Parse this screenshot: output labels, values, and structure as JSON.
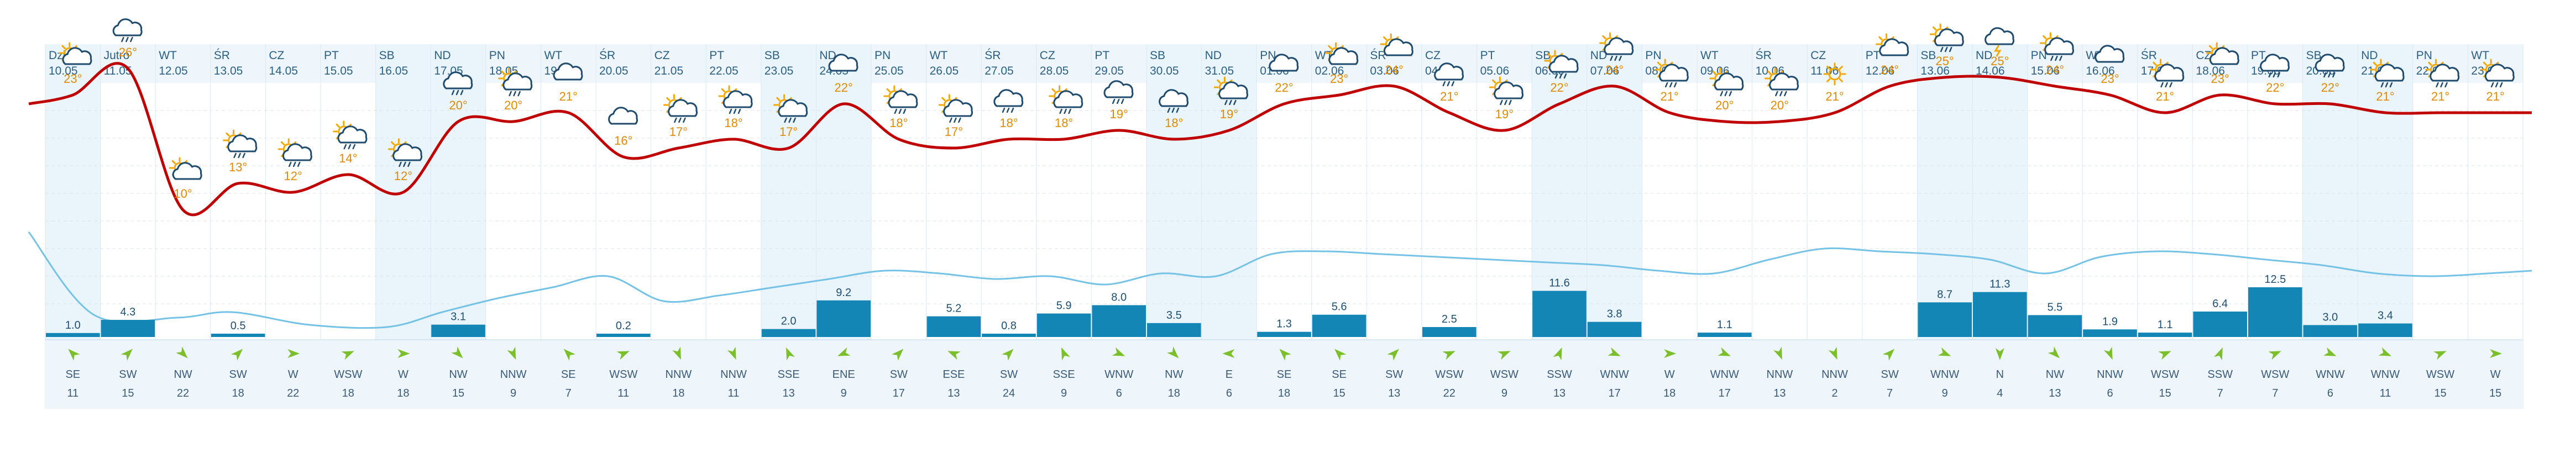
{
  "colors": {
    "background": "#ffffff",
    "weekend_shade": "#e9f4fb",
    "date_header": "#eef6fb",
    "wind_row": "#eef6fb",
    "temp_line": "#c00000",
    "humidity_line": "#74c3e6",
    "rain_bar": "#1386b5",
    "sun": "#f2a800",
    "cloud": "#1f4b6e",
    "wind_arrow": "#7bbf2a",
    "temp_text": "#e08a00"
  },
  "days": [
    {
      "day": "Dzisiaj",
      "date": "10.05",
      "temp": "23°",
      "icon": "sun-cloud-icon",
      "rain": "1.0",
      "wind_dir": "SE",
      "wind_speed": "11",
      "weekend": true
    },
    {
      "day": "Jutro",
      "date": "11.05",
      "temp": "26°",
      "icon": "rain-cloud-icon",
      "rain": "4.3",
      "wind_dir": "SW",
      "wind_speed": "15",
      "weekend": false
    },
    {
      "day": "WT",
      "date": "12.05",
      "temp": "10°",
      "icon": "sun-cloud-icon",
      "rain": "",
      "wind_dir": "NW",
      "wind_speed": "22",
      "weekend": false
    },
    {
      "day": "ŚR",
      "date": "13.05",
      "temp": "13°",
      "icon": "sun-rain-icon",
      "rain": "0.5",
      "wind_dir": "SW",
      "wind_speed": "18",
      "weekend": false
    },
    {
      "day": "CZ",
      "date": "14.05",
      "temp": "12°",
      "icon": "sun-rain-icon",
      "rain": "",
      "wind_dir": "W",
      "wind_speed": "22",
      "weekend": false
    },
    {
      "day": "PT",
      "date": "15.05",
      "temp": "14°",
      "icon": "sun-rain-icon",
      "rain": "",
      "wind_dir": "WSW",
      "wind_speed": "18",
      "weekend": false
    },
    {
      "day": "SB",
      "date": "16.05",
      "temp": "12°",
      "icon": "sun-rain-icon",
      "rain": "",
      "wind_dir": "W",
      "wind_speed": "18",
      "weekend": true
    },
    {
      "day": "ND",
      "date": "17.05",
      "temp": "20°",
      "icon": "rain-cloud-icon",
      "rain": "3.1",
      "wind_dir": "NW",
      "wind_speed": "15",
      "weekend": true
    },
    {
      "day": "PN",
      "date": "18.05",
      "temp": "20°",
      "icon": "sun-rain-icon",
      "rain": "",
      "wind_dir": "NNW",
      "wind_speed": "9",
      "weekend": false
    },
    {
      "day": "WT",
      "date": "19.05",
      "temp": "21°",
      "icon": "cloud-icon",
      "rain": "",
      "wind_dir": "SE",
      "wind_speed": "7",
      "weekend": false
    },
    {
      "day": "ŚR",
      "date": "20.05",
      "temp": "16°",
      "icon": "cloud-icon",
      "rain": "0.2",
      "wind_dir": "WSW",
      "wind_speed": "11",
      "weekend": false
    },
    {
      "day": "CZ",
      "date": "21.05",
      "temp": "17°",
      "icon": "sun-rain-icon",
      "rain": "",
      "wind_dir": "NNW",
      "wind_speed": "18",
      "weekend": false
    },
    {
      "day": "PT",
      "date": "22.05",
      "temp": "18°",
      "icon": "sun-rain-icon",
      "rain": "",
      "wind_dir": "NNW",
      "wind_speed": "11",
      "weekend": false
    },
    {
      "day": "SB",
      "date": "23.05",
      "temp": "17°",
      "icon": "sun-rain-icon",
      "rain": "2.0",
      "wind_dir": "SSE",
      "wind_speed": "13",
      "weekend": true
    },
    {
      "day": "ND",
      "date": "24.05",
      "temp": "22°",
      "icon": "cloud-icon",
      "rain": "9.2",
      "wind_dir": "ENE",
      "wind_speed": "9",
      "weekend": true
    },
    {
      "day": "PN",
      "date": "25.05",
      "temp": "18°",
      "icon": "sun-rain-icon",
      "rain": "",
      "wind_dir": "SW",
      "wind_speed": "17",
      "weekend": false
    },
    {
      "day": "WT",
      "date": "26.05",
      "temp": "17°",
      "icon": "sun-rain-icon",
      "rain": "5.2",
      "wind_dir": "ESE",
      "wind_speed": "13",
      "weekend": false
    },
    {
      "day": "ŚR",
      "date": "27.05",
      "temp": "18°",
      "icon": "rain-cloud-icon",
      "rain": "0.8",
      "wind_dir": "SW",
      "wind_speed": "24",
      "weekend": false
    },
    {
      "day": "CZ",
      "date": "28.05",
      "temp": "18°",
      "icon": "sun-rain-icon",
      "rain": "5.9",
      "wind_dir": "SSE",
      "wind_speed": "9",
      "weekend": false
    },
    {
      "day": "PT",
      "date": "29.05",
      "temp": "19°",
      "icon": "rain-cloud-icon",
      "rain": "8.0",
      "wind_dir": "WNW",
      "wind_speed": "6",
      "weekend": false
    },
    {
      "day": "SB",
      "date": "30.05",
      "temp": "18°",
      "icon": "rain-cloud-icon",
      "rain": "3.5",
      "wind_dir": "NW",
      "wind_speed": "18",
      "weekend": true
    },
    {
      "day": "ND",
      "date": "31.05",
      "temp": "19°",
      "icon": "sun-rain-icon",
      "rain": "",
      "wind_dir": "E",
      "wind_speed": "6",
      "weekend": true
    },
    {
      "day": "PN",
      "date": "01.06",
      "temp": "22°",
      "icon": "cloud-icon",
      "rain": "1.3",
      "wind_dir": "SE",
      "wind_speed": "18",
      "weekend": false
    },
    {
      "day": "WT",
      "date": "02.06",
      "temp": "23°",
      "icon": "sun-cloud-icon",
      "rain": "5.6",
      "wind_dir": "SE",
      "wind_speed": "15",
      "weekend": false
    },
    {
      "day": "ŚR",
      "date": "03.06",
      "temp": "24°",
      "icon": "sun-cloud-icon",
      "rain": "",
      "wind_dir": "SW",
      "wind_speed": "13",
      "weekend": false
    },
    {
      "day": "CZ",
      "date": "04.06",
      "temp": "21°",
      "icon": "rain-cloud-icon",
      "rain": "2.5",
      "wind_dir": "WSW",
      "wind_speed": "22",
      "weekend": false
    },
    {
      "day": "PT",
      "date": "05.06",
      "temp": "19°",
      "icon": "sun-rain-icon",
      "rain": "",
      "wind_dir": "WSW",
      "wind_speed": "9",
      "weekend": false
    },
    {
      "day": "SB",
      "date": "06.06",
      "temp": "22°",
      "icon": "sun-rain-icon",
      "rain": "11.6",
      "wind_dir": "SSW",
      "wind_speed": "13",
      "weekend": true
    },
    {
      "day": "ND",
      "date": "07.06",
      "temp": "24°",
      "icon": "sun-rain-icon",
      "rain": "3.8",
      "wind_dir": "WNW",
      "wind_speed": "17",
      "weekend": true
    },
    {
      "day": "PN",
      "date": "08.06",
      "temp": "21°",
      "icon": "sun-rain-icon",
      "rain": "",
      "wind_dir": "W",
      "wind_speed": "18",
      "weekend": false
    },
    {
      "day": "WT",
      "date": "09.06",
      "temp": "20°",
      "icon": "sun-rain-icon",
      "rain": "1.1",
      "wind_dir": "WNW",
      "wind_speed": "17",
      "weekend": false
    },
    {
      "day": "ŚR",
      "date": "10.06",
      "temp": "20°",
      "icon": "sun-rain-icon",
      "rain": "",
      "wind_dir": "NNW",
      "wind_speed": "13",
      "weekend": false
    },
    {
      "day": "CZ",
      "date": "11.06",
      "temp": "21°",
      "icon": "sun-icon",
      "rain": "",
      "wind_dir": "NNW",
      "wind_speed": "2",
      "weekend": false
    },
    {
      "day": "PT",
      "date": "12.06",
      "temp": "24°",
      "icon": "sun-cloud-icon",
      "rain": "",
      "wind_dir": "SW",
      "wind_speed": "7",
      "weekend": false
    },
    {
      "day": "SB",
      "date": "13.06",
      "temp": "25°",
      "icon": "sun-rain-icon",
      "rain": "8.7",
      "wind_dir": "WNW",
      "wind_speed": "9",
      "weekend": true
    },
    {
      "day": "ND",
      "date": "14.06",
      "temp": "25°",
      "icon": "storm-cloud-icon",
      "rain": "11.3",
      "wind_dir": "N",
      "wind_speed": "4",
      "weekend": true
    },
    {
      "day": "PN",
      "date": "15.06",
      "temp": "24°",
      "icon": "sun-rain-icon",
      "rain": "5.5",
      "wind_dir": "NW",
      "wind_speed": "13",
      "weekend": false
    },
    {
      "day": "WT",
      "date": "16.06",
      "temp": "23°",
      "icon": "cloud-icon",
      "rain": "1.9",
      "wind_dir": "NNW",
      "wind_speed": "6",
      "weekend": false
    },
    {
      "day": "ŚR",
      "date": "17.06",
      "temp": "21°",
      "icon": "sun-rain-icon",
      "rain": "1.1",
      "wind_dir": "WSW",
      "wind_speed": "15",
      "weekend": false
    },
    {
      "day": "CZ",
      "date": "18.06",
      "temp": "23°",
      "icon": "sun-cloud-icon",
      "rain": "6.4",
      "wind_dir": "SSW",
      "wind_speed": "7",
      "weekend": false
    },
    {
      "day": "PT",
      "date": "19.06",
      "temp": "22°",
      "icon": "rain-cloud-icon",
      "rain": "12.5",
      "wind_dir": "WSW",
      "wind_speed": "7",
      "weekend": false
    },
    {
      "day": "SB",
      "date": "20.06",
      "temp": "22°",
      "icon": "rain-cloud-icon",
      "rain": "3.0",
      "wind_dir": "WNW",
      "wind_speed": "6",
      "weekend": true
    },
    {
      "day": "ND",
      "date": "21.06",
      "temp": "21°",
      "icon": "sun-rain-icon",
      "rain": "3.4",
      "wind_dir": "WNW",
      "wind_speed": "11",
      "weekend": true
    },
    {
      "day": "PN",
      "date": "22.06",
      "temp": "21°",
      "icon": "sun-rain-icon",
      "rain": "",
      "wind_dir": "WSW",
      "wind_speed": "15",
      "weekend": false
    },
    {
      "day": "WT",
      "date": "23.06",
      "temp": "21°",
      "icon": "sun-rain-icon",
      "rain": "",
      "wind_dir": "W",
      "wind_speed": "15",
      "weekend": false
    }
  ]
}
